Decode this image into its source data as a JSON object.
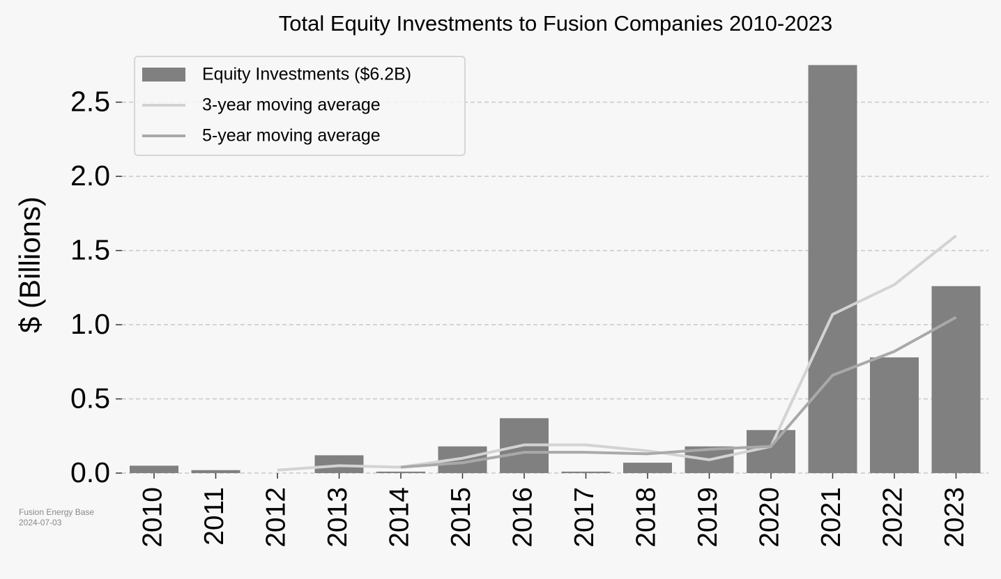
{
  "chart_data": {
    "type": "bar",
    "title": "Total Equity Investments to Fusion Companies 2010-2023",
    "y_label": "$ (Billions)",
    "source": "Fusion Energy Base",
    "date": "2024-07-03",
    "categories": [
      "2010",
      "2011",
      "2012",
      "2013",
      "2014",
      "2015",
      "2016",
      "2017",
      "2018",
      "2019",
      "2020",
      "2021",
      "2022",
      "2023"
    ],
    "series": [
      {
        "name": "Equity Investments ($6.2B)",
        "type": "bar",
        "color": "#808080",
        "values": [
          0.05,
          0.02,
          0.0,
          0.12,
          0.01,
          0.18,
          0.37,
          0.01,
          0.07,
          0.18,
          0.29,
          2.75,
          0.78,
          1.26
        ]
      },
      {
        "name": "3-year moving average",
        "type": "line",
        "color": "#d3d3d3",
        "values": [
          null,
          null,
          0.02,
          0.05,
          0.04,
          0.1,
          0.19,
          0.19,
          0.15,
          0.09,
          0.18,
          1.07,
          1.27,
          1.6
        ]
      },
      {
        "name": "5-year moving average",
        "type": "line",
        "color": "#a9a9a9",
        "values": [
          null,
          null,
          null,
          null,
          0.04,
          0.07,
          0.14,
          0.14,
          0.13,
          0.16,
          0.18,
          0.66,
          0.82,
          1.05
        ]
      }
    ],
    "ylim": [
      0,
      2.78
    ],
    "yticks": [
      {
        "value": 0,
        "label": "0.0"
      },
      0.5,
      {
        "value": 1,
        "label": "1.0"
      },
      1.5,
      {
        "value": 2,
        "label": "2.0"
      },
      2.5
    ],
    "grid": true,
    "legend": "upper left"
  }
}
